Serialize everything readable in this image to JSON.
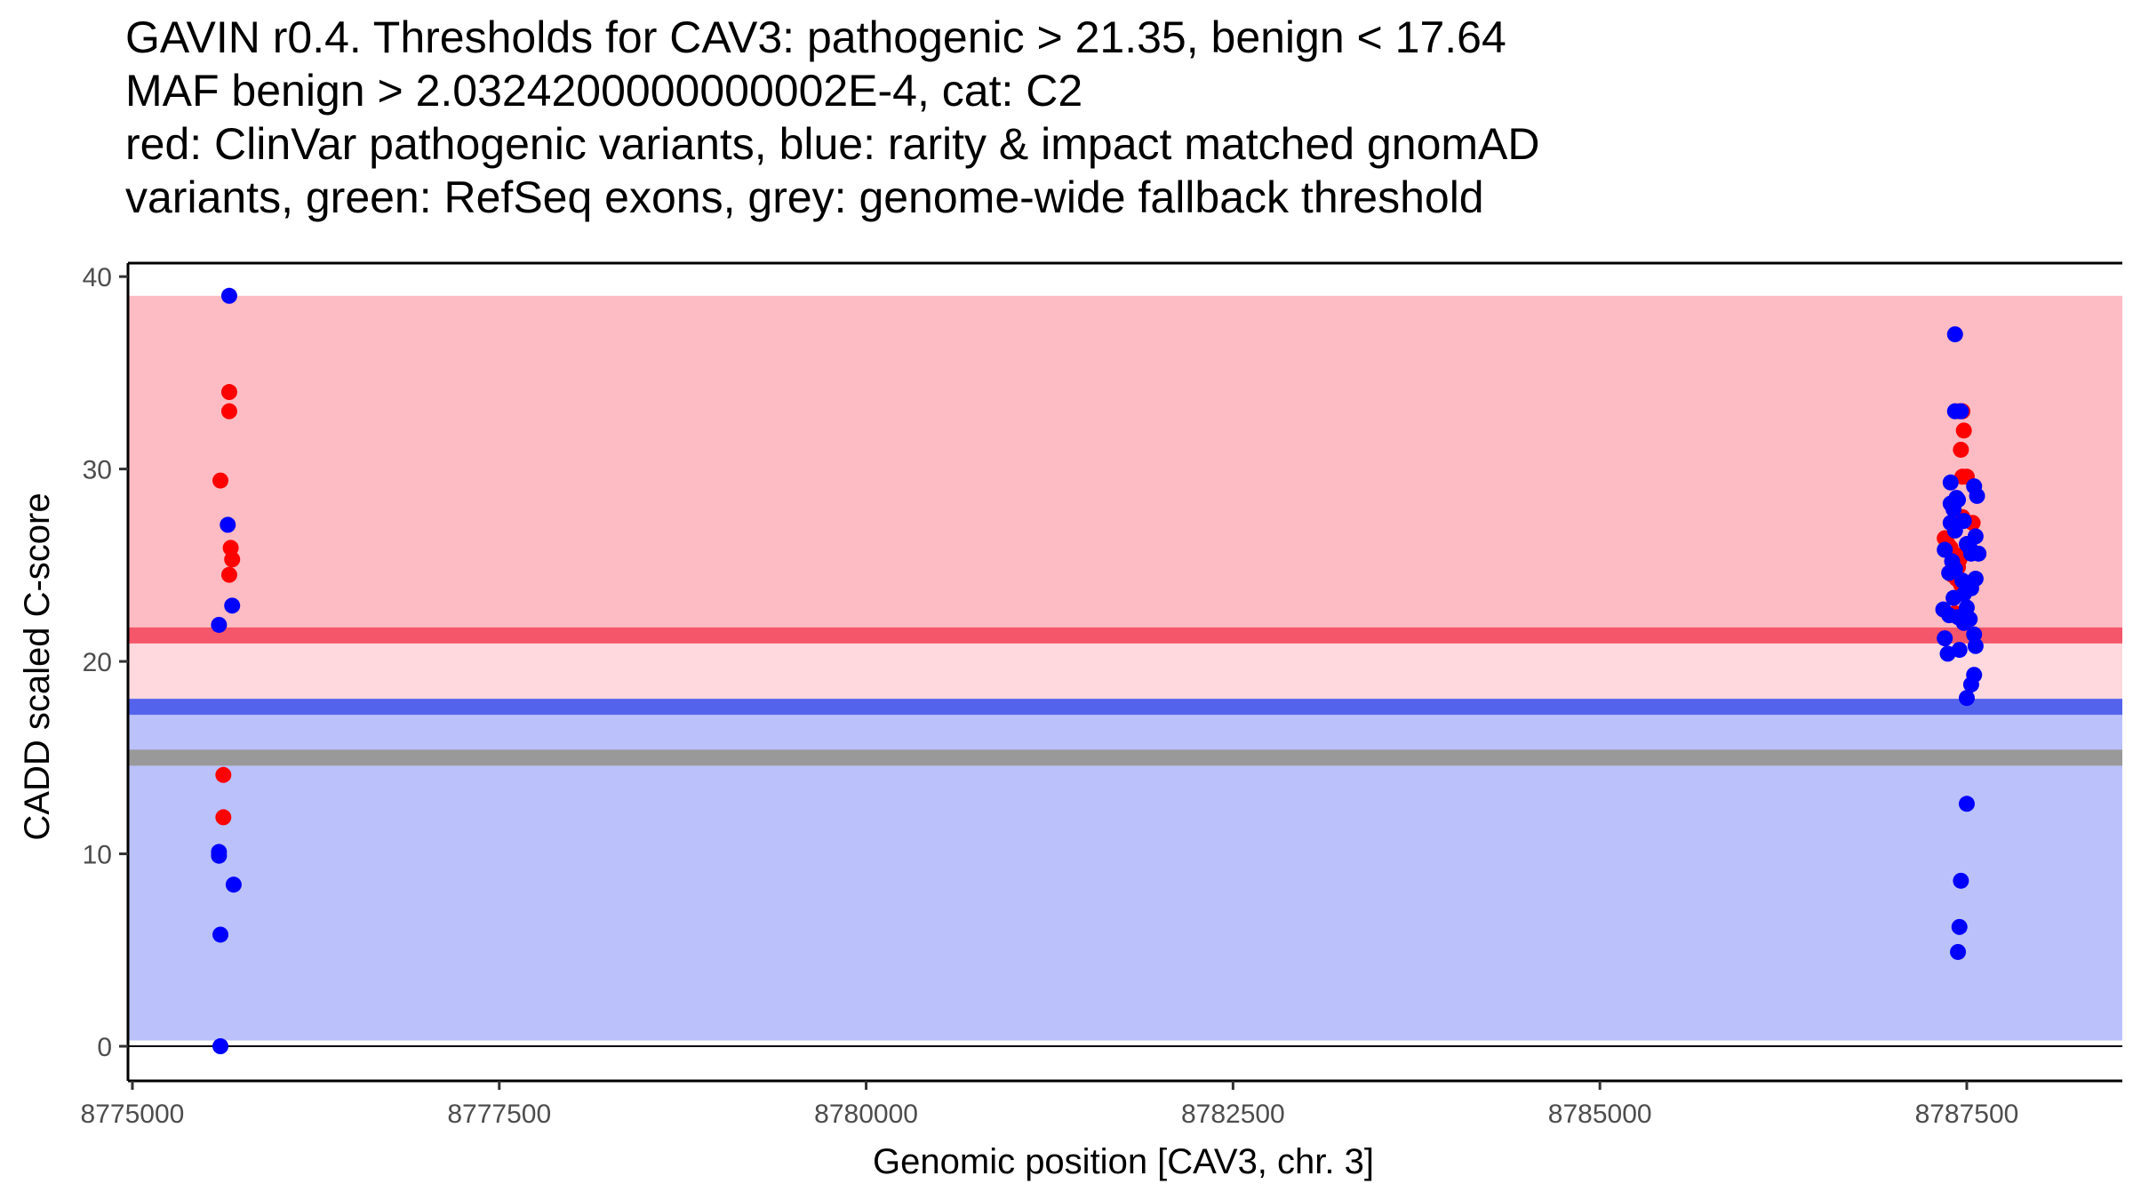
{
  "chart_data": {
    "type": "scatter",
    "title_lines": [
      "GAVIN r0.4. Thresholds for CAV3: pathogenic > 21.35, benign < 17.64",
      "MAF benign > 2.0324200000000002E-4, cat: C2",
      "red: ClinVar pathogenic variants, blue: rarity & impact matched gnomAD",
      "variants, green: RefSeq exons, grey: genome-wide fallback threshold"
    ],
    "xlabel": "Genomic position [CAV3, chr. 3]",
    "ylabel": "CADD scaled C-score",
    "xlim": [
      8774970,
      8788560
    ],
    "ylim": [
      -1.8,
      40.7
    ],
    "xticks": [
      8775000,
      8777500,
      8780000,
      8782500,
      8785000,
      8787500
    ],
    "yticks": [
      0,
      10,
      20,
      30,
      40
    ],
    "colors": {
      "pathogenic": "#ff0000",
      "benign": "#0000ff",
      "path_region": "#fdbcc3",
      "path_zone_low": "#ffd9de",
      "benign_region": "#bbc1fb",
      "path_line": "#f5566a",
      "benign_line": "#5363ec",
      "fallback_line": "#999999"
    },
    "regions": [
      {
        "name": "pathogenic-region",
        "y0": 21.35,
        "y1": 39.0,
        "color": "#fdbcc3"
      },
      {
        "name": "pathogenic-uncertain-region",
        "y0": 17.64,
        "y1": 21.35,
        "color": "#ffd9de"
      },
      {
        "name": "benign-region",
        "y0": 0.3,
        "y1": 17.64,
        "color": "#bbc1fb"
      }
    ],
    "thresholds": [
      {
        "name": "pathogenic-threshold-line",
        "y": 21.35,
        "color": "#f5566a"
      },
      {
        "name": "benign-threshold-line",
        "y": 17.64,
        "color": "#5363ec"
      },
      {
        "name": "fallback-threshold-line",
        "y": 15.0,
        "color": "#999999"
      }
    ],
    "series": [
      {
        "name": "ClinVar pathogenic",
        "color": "#ff0000",
        "points": [
          [
            8775600,
            29.4
          ],
          [
            8775660,
            34.0
          ],
          [
            8775660,
            33.0
          ],
          [
            8775670,
            25.9
          ],
          [
            8775680,
            25.3
          ],
          [
            8775660,
            24.5
          ],
          [
            8775620,
            14.1
          ],
          [
            8775620,
            11.9
          ],
          [
            8787350,
            26.4
          ],
          [
            8787370,
            26.1
          ],
          [
            8787390,
            25.9
          ],
          [
            8787400,
            24.5
          ],
          [
            8787420,
            22.5
          ],
          [
            8787440,
            24.9
          ],
          [
            8787450,
            25.3
          ],
          [
            8787430,
            24.3
          ],
          [
            8787460,
            24.0
          ],
          [
            8787460,
            25.5
          ],
          [
            8787470,
            33.0
          ],
          [
            8787460,
            31.0
          ],
          [
            8787480,
            32.0
          ],
          [
            8787470,
            29.6
          ],
          [
            8787500,
            29.6
          ],
          [
            8787470,
            27.5
          ],
          [
            8787540,
            27.2
          ],
          [
            8787450,
            33.0
          ]
        ]
      },
      {
        "name": "gnomAD rarity & impact matched",
        "color": "#0000ff",
        "points": [
          [
            8775660,
            39.0
          ],
          [
            8775650,
            27.1
          ],
          [
            8775680,
            22.9
          ],
          [
            8775590,
            21.9
          ],
          [
            8775590,
            10.1
          ],
          [
            8775590,
            9.9
          ],
          [
            8775690,
            8.4
          ],
          [
            8775600,
            5.8
          ],
          [
            8775600,
            0.0
          ],
          [
            8787420,
            37.0
          ],
          [
            8787420,
            33.0
          ],
          [
            8787460,
            33.0
          ],
          [
            8787390,
            29.3
          ],
          [
            8787430,
            28.5
          ],
          [
            8787390,
            28.2
          ],
          [
            8787410,
            27.9
          ],
          [
            8787440,
            28.4
          ],
          [
            8787390,
            27.2
          ],
          [
            8787420,
            26.8
          ],
          [
            8787480,
            27.3
          ],
          [
            8787550,
            29.1
          ],
          [
            8787570,
            28.6
          ],
          [
            8787500,
            26.1
          ],
          [
            8787520,
            25.9
          ],
          [
            8787560,
            26.5
          ],
          [
            8787580,
            25.6
          ],
          [
            8787530,
            25.6
          ],
          [
            8787350,
            25.8
          ],
          [
            8787400,
            25.2
          ],
          [
            8787420,
            24.8
          ],
          [
            8787380,
            24.6
          ],
          [
            8787470,
            24.2
          ],
          [
            8787530,
            23.8
          ],
          [
            8787560,
            24.3
          ],
          [
            8787410,
            23.3
          ],
          [
            8787480,
            23.5
          ],
          [
            8787500,
            22.8
          ],
          [
            8787340,
            22.7
          ],
          [
            8787380,
            22.4
          ],
          [
            8787440,
            22.3
          ],
          [
            8787480,
            22.0
          ],
          [
            8787520,
            22.2
          ],
          [
            8787350,
            21.2
          ],
          [
            8787550,
            21.4
          ],
          [
            8787560,
            20.8
          ],
          [
            8787370,
            20.4
          ],
          [
            8787450,
            20.6
          ],
          [
            8787550,
            19.3
          ],
          [
            8787530,
            18.8
          ],
          [
            8787500,
            18.1
          ],
          [
            8787500,
            12.6
          ],
          [
            8787460,
            8.6
          ],
          [
            8787450,
            6.2
          ],
          [
            8787440,
            4.9
          ]
        ]
      }
    ]
  }
}
